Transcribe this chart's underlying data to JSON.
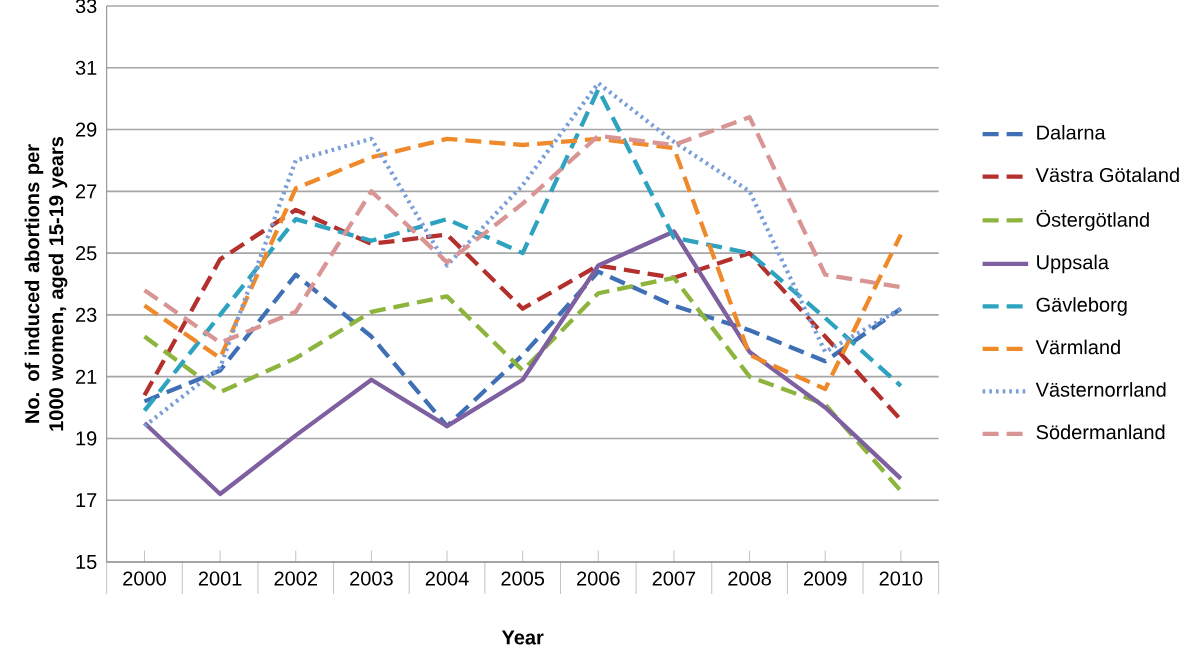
{
  "chart_data": {
    "type": "line",
    "xlabel": "Year",
    "ylabel": "No. of induced abortions per 1000 women, aged 15-19 years",
    "categories": [
      "2000",
      "2001",
      "2002",
      "2003",
      "2004",
      "2005",
      "2006",
      "2007",
      "2008",
      "2009",
      "2010"
    ],
    "ylim": [
      15,
      33
    ],
    "yticks": [
      15,
      17,
      19,
      21,
      23,
      25,
      27,
      29,
      31,
      33
    ],
    "grid": "y",
    "legend": "right",
    "marker": "none",
    "series": [
      {
        "name": "Dalarna",
        "color": "#3f6fb5",
        "line_style": "dashed",
        "values": [
          20.2,
          21.2,
          24.3,
          22.3,
          19.4,
          21.7,
          24.4,
          23.3,
          22.5,
          21.5,
          23.2
        ]
      },
      {
        "name": "Västra Götaland",
        "color": "#b3302d",
        "line_style": "dashed",
        "values": [
          20.4,
          24.8,
          26.4,
          25.3,
          25.6,
          23.2,
          24.6,
          24.2,
          25.0,
          22.3,
          19.6
        ]
      },
      {
        "name": "Östergötland",
        "color": "#8db43c",
        "line_style": "dashed",
        "values": [
          22.3,
          20.5,
          21.6,
          23.1,
          23.6,
          21.2,
          23.7,
          24.2,
          21.0,
          20.1,
          17.3
        ]
      },
      {
        "name": "Uppsala",
        "color": "#7e60a0",
        "line_style": "solid",
        "values": [
          19.5,
          17.2,
          19.1,
          20.9,
          19.4,
          20.9,
          24.6,
          25.7,
          21.8,
          20.0,
          17.7
        ]
      },
      {
        "name": "Gävleborg",
        "color": "#2ea3c0",
        "line_style": "dashed",
        "values": [
          19.9,
          23.0,
          26.1,
          25.4,
          26.1,
          25.0,
          30.3,
          25.5,
          25.0,
          22.9,
          20.7
        ]
      },
      {
        "name": "Värmland",
        "color": "#ef8a2b",
        "line_style": "dashed",
        "values": [
          23.3,
          21.6,
          27.1,
          28.1,
          28.7,
          28.5,
          28.7,
          28.4,
          21.7,
          20.6,
          25.6
        ]
      },
      {
        "name": "Västernorrland",
        "color": "#7a9fd8",
        "line_style": "dotted",
        "values": [
          19.4,
          21.3,
          28.0,
          28.7,
          24.6,
          27.2,
          30.5,
          28.6,
          27.0,
          21.8,
          23.2
        ]
      },
      {
        "name": "Södermanland",
        "color": "#d99594",
        "line_style": "dashed",
        "values": [
          23.8,
          22.1,
          23.1,
          27.0,
          24.7,
          26.6,
          28.8,
          28.5,
          29.4,
          24.3,
          23.9
        ]
      }
    ]
  }
}
